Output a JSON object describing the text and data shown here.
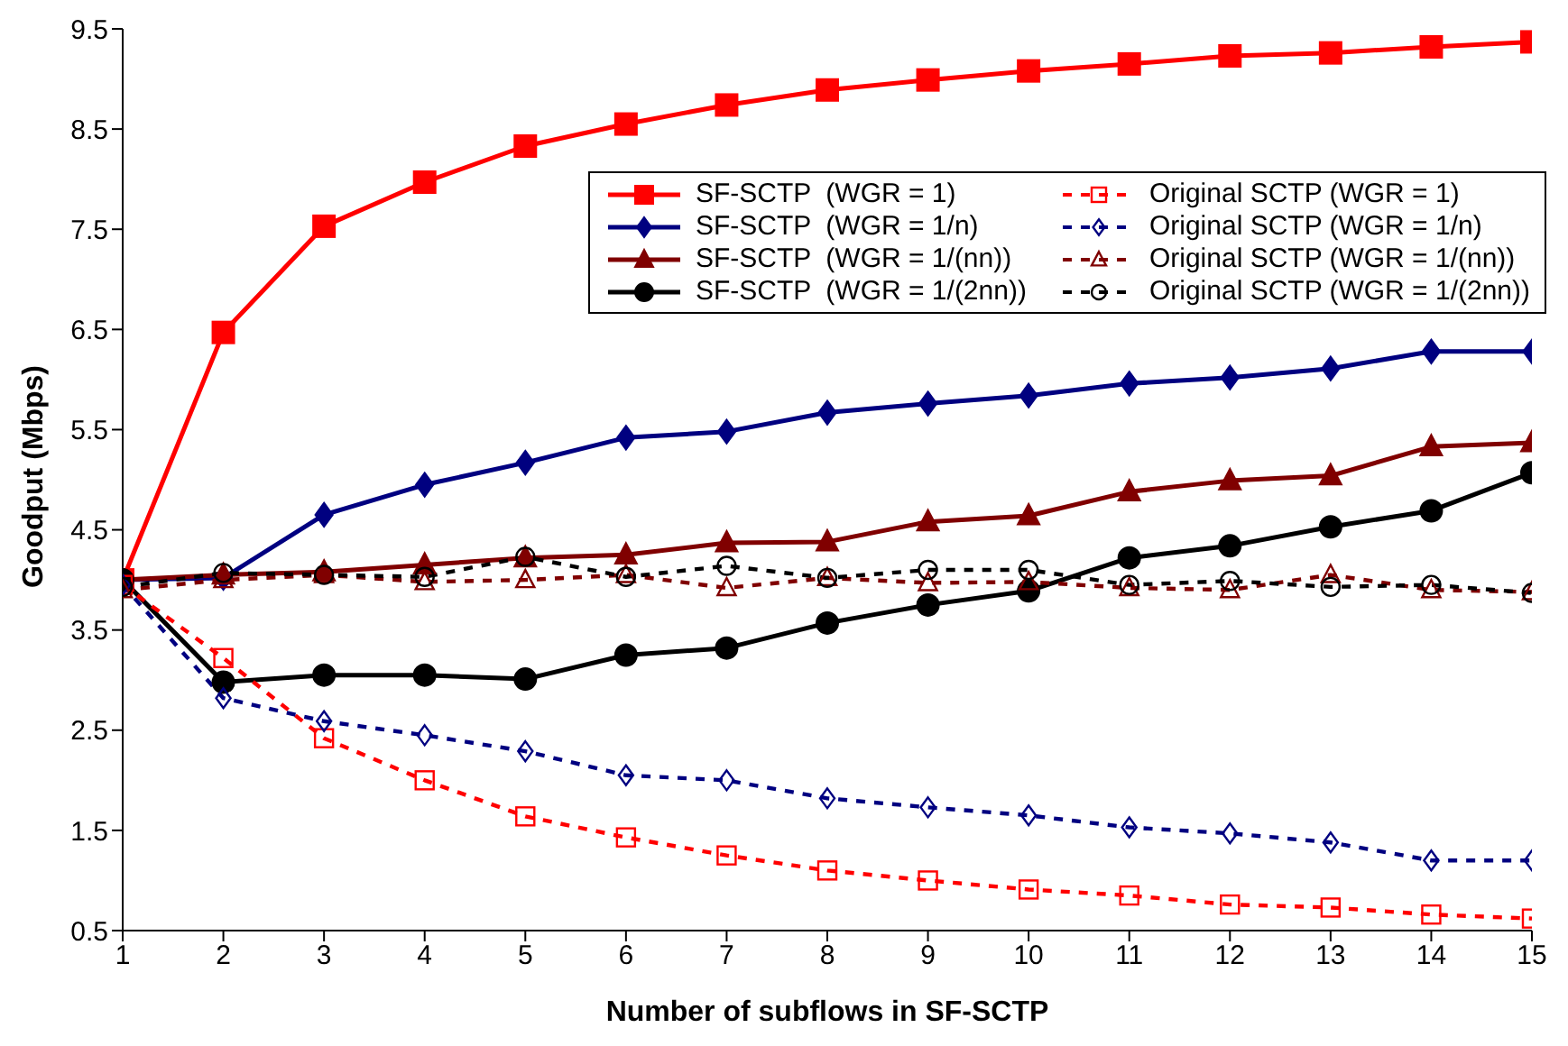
{
  "chart_data": {
    "type": "line",
    "xlabel": "Number of subflows in SF-SCTP",
    "ylabel": "Goodput (Mbps)",
    "x": [
      1,
      2,
      3,
      4,
      5,
      6,
      7,
      8,
      9,
      10,
      11,
      12,
      13,
      14,
      15
    ],
    "xlim": [
      1,
      15
    ],
    "xticks": [
      1,
      2,
      3,
      4,
      5,
      6,
      7,
      8,
      9,
      10,
      11,
      12,
      13,
      14,
      15
    ],
    "ylim": [
      0.5,
      9.5
    ],
    "yticks": [
      0.5,
      1.5,
      2.5,
      3.5,
      4.5,
      5.5,
      6.5,
      7.5,
      8.5,
      9.5
    ],
    "grid": false,
    "legend": "top right",
    "series": [
      {
        "name": "SF-SCTP  (WGR = 1)",
        "color": "#ff0000",
        "marker": "square",
        "line_style": "solid",
        "values": [
          4.0,
          6.47,
          7.53,
          7.97,
          8.33,
          8.55,
          8.74,
          8.89,
          8.99,
          9.08,
          9.15,
          9.23,
          9.26,
          9.32,
          9.37
        ]
      },
      {
        "name": "SF-SCTP  (WGR = 1/n)",
        "color": "#000080",
        "marker": "diamond",
        "line_style": "solid",
        "values": [
          4.0,
          4.02,
          4.65,
          4.95,
          5.17,
          5.42,
          5.48,
          5.67,
          5.76,
          5.84,
          5.96,
          6.02,
          6.11,
          6.28,
          6.28
        ]
      },
      {
        "name": "SF-SCTP  (WGR = 1/(nn))",
        "color": "#800000",
        "marker": "triangle",
        "line_style": "solid",
        "values": [
          4.0,
          4.05,
          4.08,
          4.15,
          4.22,
          4.25,
          4.37,
          4.38,
          4.58,
          4.64,
          4.88,
          4.99,
          5.04,
          5.33,
          5.37
        ]
      },
      {
        "name": "SF-SCTP  (WGR = 1/(2nn))",
        "color": "#000000",
        "marker": "circle",
        "line_style": "solid",
        "values": [
          4.0,
          2.98,
          3.05,
          3.05,
          3.01,
          3.25,
          3.32,
          3.57,
          3.75,
          3.89,
          4.22,
          4.34,
          4.53,
          4.69,
          5.07
        ]
      },
      {
        "name": "Original SCTP (WGR = 1)",
        "color": "#ff0000",
        "marker": "square",
        "line_style": "dashed",
        "values": [
          3.95,
          3.22,
          2.42,
          2.0,
          1.64,
          1.43,
          1.25,
          1.1,
          1.0,
          0.91,
          0.85,
          0.76,
          0.73,
          0.66,
          0.62
        ]
      },
      {
        "name": "Original SCTP (WGR = 1/n)",
        "color": "#000080",
        "marker": "diamond",
        "line_style": "dashed",
        "values": [
          3.95,
          2.82,
          2.59,
          2.45,
          2.29,
          2.05,
          2.0,
          1.82,
          1.73,
          1.65,
          1.53,
          1.47,
          1.38,
          1.2,
          1.2
        ]
      },
      {
        "name": "Original SCTP (WGR = 1/(nn))",
        "color": "#800000",
        "marker": "triangle",
        "line_style": "dashed",
        "values": [
          3.9,
          4.0,
          4.05,
          3.98,
          4.0,
          4.05,
          3.92,
          4.02,
          3.97,
          3.98,
          3.92,
          3.9,
          4.05,
          3.9,
          3.88
        ]
      },
      {
        "name": "Original SCTP (WGR = 1/(2nn))",
        "color": "#000000",
        "marker": "circle",
        "line_style": "dashed",
        "values": [
          3.93,
          4.07,
          4.05,
          4.03,
          4.23,
          4.03,
          4.14,
          4.02,
          4.1,
          4.1,
          3.95,
          3.99,
          3.93,
          3.95,
          3.87
        ]
      }
    ]
  }
}
